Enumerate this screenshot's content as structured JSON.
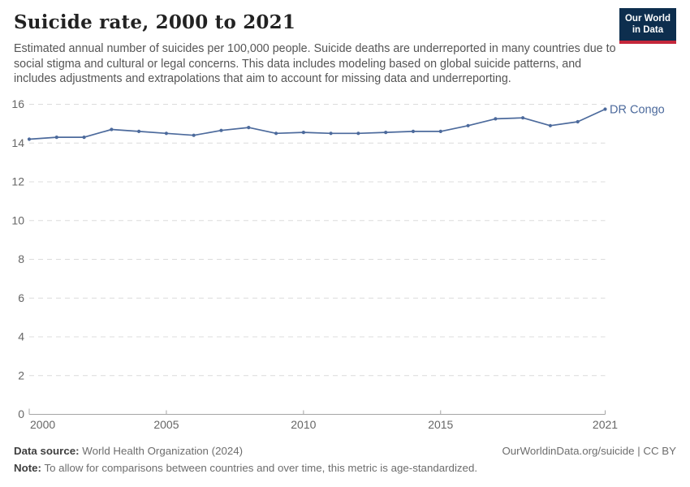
{
  "header": {
    "title": "Suicide rate, 2000 to 2021",
    "subtitle": "Estimated annual number of suicides per 100,000 people. Suicide deaths are underreported in many countries due to social stigma and cultural or legal concerns. This data includes modeling based on global suicide patterns, and includes adjustments and extrapolations that aim to account for missing data and underreporting.",
    "logo": {
      "line1": "Our World",
      "line2": "in Data",
      "bg_color": "#0d2e4e",
      "accent_color": "#c4273b"
    }
  },
  "chart_data": {
    "type": "line",
    "title": "Suicide rate, 2000 to 2021",
    "xlabel": "",
    "ylabel": "",
    "xlim": [
      2000,
      2021
    ],
    "ylim": [
      0,
      16
    ],
    "xticks": [
      2000,
      2005,
      2010,
      2015,
      2021
    ],
    "yticks": [
      0,
      2,
      4,
      6,
      8,
      10,
      12,
      14,
      16
    ],
    "grid": "horizontal-dashed",
    "legend_position": "end-of-line-label",
    "x": [
      2000,
      2001,
      2002,
      2003,
      2004,
      2005,
      2006,
      2007,
      2008,
      2009,
      2010,
      2011,
      2012,
      2013,
      2014,
      2015,
      2016,
      2017,
      2018,
      2019,
      2020,
      2021
    ],
    "series": [
      {
        "name": "DR Congo",
        "color": "#4C6A9C",
        "values": [
          14.2,
          14.3,
          14.3,
          14.7,
          14.6,
          14.5,
          14.4,
          14.65,
          14.8,
          14.5,
          14.55,
          14.5,
          14.5,
          14.55,
          14.6,
          14.6,
          14.9,
          15.25,
          15.3,
          14.9,
          15.1,
          15.75
        ]
      }
    ]
  },
  "footer": {
    "datasource_label": "Data source:",
    "datasource_value": " World Health Organization (2024)",
    "rights": "OurWorldinData.org/suicide | CC BY",
    "note_label": "Note:",
    "note_value": " To allow for comparisons between countries and over time, this metric is age-standardized."
  }
}
